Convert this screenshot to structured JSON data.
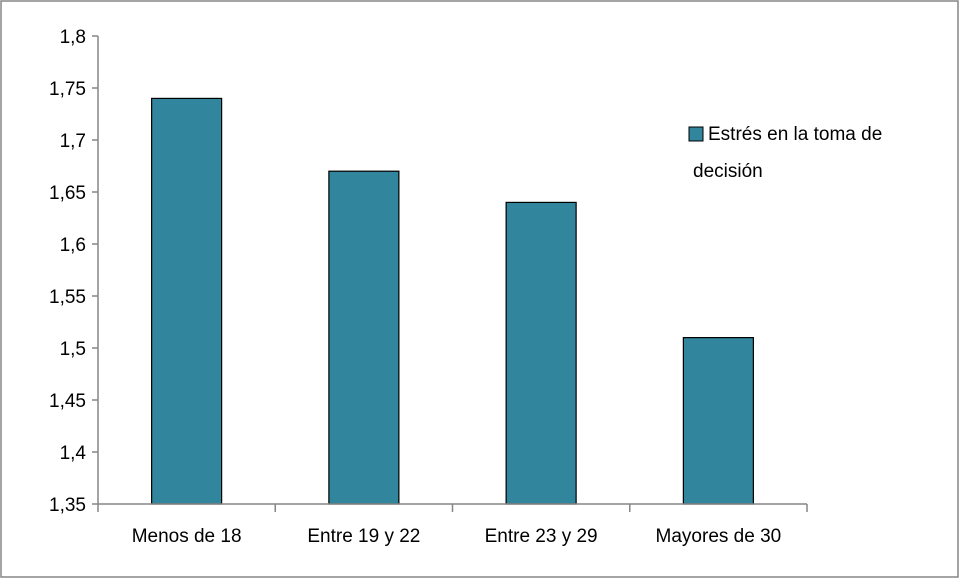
{
  "chart_data": {
    "type": "bar",
    "categories": [
      "Menos de 18",
      "Entre 19 y 22",
      "Entre 23 y 29",
      "Mayores de 30"
    ],
    "series": [
      {
        "name": "Estrés en la toma de decisión",
        "values": [
          1.74,
          1.67,
          1.64,
          1.51
        ]
      }
    ],
    "y_ticks": [
      "1,35",
      "1,4",
      "1,45",
      "1,5",
      "1,55",
      "1,6",
      "1,65",
      "1,7",
      "1,75",
      "1,8"
    ],
    "ylim": [
      1.35,
      1.8
    ],
    "grid": false,
    "legend_position": "right",
    "legend_lines": [
      "Estrés en la toma de",
      "decisión"
    ],
    "colors": {
      "bar": "#31859C",
      "bar_outline": "#000000",
      "axis": "#868686",
      "frame": "#868686"
    }
  }
}
